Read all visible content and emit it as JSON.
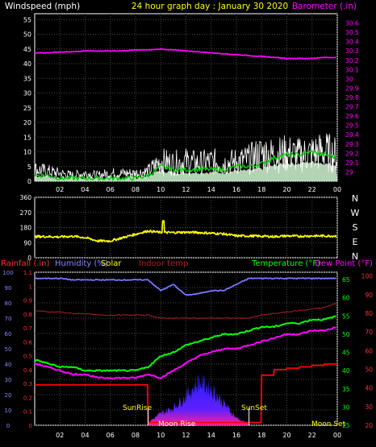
{
  "header": {
    "wind_label": "Windspeed (mph)",
    "title": "24 hour graph day : January 30 2020",
    "baro_label": "Barometer (.in)"
  },
  "bottom_header": {
    "rain_label": "Rainfall (.in)",
    "humidity_label": "Humidity (%)",
    "solar_label": "Solar",
    "indoor_label": "Indoor temp",
    "temp_label": "Temperature (°F)",
    "dew_label": "Dew Point (°F)"
  },
  "x_ticks": [
    "02",
    "04",
    "06",
    "08",
    "10",
    "12",
    "14",
    "16",
    "18",
    "20",
    "22",
    "00"
  ],
  "compass": [
    "N",
    "W",
    "S",
    "E",
    "N"
  ],
  "sun_moon": {
    "sunrise": "SunRise",
    "moonrise": "Moon Rise",
    "sunset": "SunSet",
    "moonset": "Moon Set"
  },
  "colors": {
    "wind_gust": "#ffffff",
    "wind_avg": "#00d000",
    "barometer": "#ff00ff",
    "direction": "#ffff00",
    "humidity": "#7777ff",
    "temperature": "#00ff00",
    "dew_point": "#ff00ff",
    "indoor": "#aa2222",
    "rain": "#ff0000",
    "solar": "#ffff00"
  },
  "chart_data": [
    {
      "type": "line",
      "title": "24 hour graph day : January 30 2020",
      "xlabel": "",
      "x_hours": [
        0,
        1,
        2,
        3,
        4,
        5,
        6,
        7,
        8,
        9,
        10,
        11,
        12,
        13,
        14,
        15,
        16,
        17,
        18,
        19,
        20,
        21,
        22,
        23,
        24
      ],
      "y_left_ticks": [
        0,
        5,
        10,
        15,
        20,
        25,
        30,
        35,
        40,
        45,
        50,
        55
      ],
      "y_right_ticks": [
        "29",
        "29.1",
        "29.2",
        "29.3",
        "29.4",
        "29.5",
        "29.6",
        "29.7",
        "29.8",
        "29.9",
        "30",
        "30.1",
        "30.2",
        "30.3",
        "30.4",
        "30.5",
        "30.6"
      ],
      "ylim_left": [
        0,
        57
      ],
      "ylim_right": [
        28.9,
        30.7
      ],
      "series": [
        {
          "name": "Windspeed (mph)",
          "axis": "left",
          "values": [
            6,
            5,
            4,
            3,
            4,
            3,
            4,
            4,
            4,
            5,
            10,
            9,
            10,
            9,
            10,
            9,
            10,
            11,
            14,
            13,
            14,
            13,
            14,
            15,
            13
          ]
        },
        {
          "name": "",
          "axis": "left",
          "values": [
            2,
            2,
            1,
            1,
            1,
            1,
            1,
            1,
            1,
            2,
            5,
            4,
            4,
            4,
            4,
            4,
            5,
            5,
            6,
            8,
            9,
            9,
            10,
            9,
            8
          ]
        },
        {
          "name": "Barometer (.in)",
          "axis": "right",
          "values": [
            30.28,
            30.28,
            30.29,
            30.29,
            30.3,
            30.3,
            30.3,
            30.3,
            30.31,
            30.31,
            30.32,
            30.31,
            30.3,
            30.29,
            30.28,
            30.27,
            30.26,
            30.25,
            30.24,
            30.23,
            30.22,
            30.22,
            30.22,
            30.23,
            30.23
          ]
        }
      ]
    },
    {
      "type": "line",
      "title": "",
      "ylabel": "",
      "x_hours": [
        0,
        1,
        2,
        3,
        4,
        5,
        6,
        7,
        8,
        9,
        10,
        11,
        12,
        13,
        14,
        15,
        16,
        17,
        18,
        19,
        20,
        21,
        22,
        23,
        24
      ],
      "y_ticks": [
        0,
        90,
        180,
        270,
        360
      ],
      "ylim": [
        0,
        360
      ],
      "series": [
        {
          "name": "",
          "values": [
            126,
            126,
            124,
            128,
            120,
            100,
            100,
            120,
            140,
            160,
            150,
            150,
            152,
            150,
            146,
            142,
            130,
            130,
            128,
            126,
            130,
            128,
            130,
            130,
            130
          ]
        }
      ]
    },
    {
      "type": "line",
      "title": "",
      "x_hours": [
        0,
        1,
        2,
        3,
        4,
        5,
        6,
        7,
        8,
        9,
        10,
        11,
        12,
        13,
        14,
        15,
        16,
        17,
        18,
        19,
        20,
        21,
        22,
        23,
        24
      ],
      "y_humidity_ticks": [
        0,
        10,
        20,
        30,
        40,
        50,
        60,
        70,
        80,
        90,
        100
      ],
      "y_rain_ticks": [
        "0",
        "0.1",
        "0.2",
        "0.3",
        "0.4",
        "0.5",
        "0.6",
        "0.7",
        "0.8",
        "0.9",
        "1",
        "1.1"
      ],
      "y_temp_ticks": [
        25,
        30,
        35,
        40,
        45,
        50,
        55,
        60,
        65
      ],
      "y_dew_ticks": [
        20,
        30,
        40,
        50,
        60,
        70,
        80,
        90,
        100
      ],
      "ylim_humidity": [
        0,
        100
      ],
      "ylim_temp": [
        25,
        67
      ],
      "series": [
        {
          "name": "Humidity (%)",
          "axis": "humidity",
          "values": [
            96,
            96,
            96,
            95,
            95,
            95,
            95,
            95,
            95,
            95,
            88,
            92,
            85,
            86,
            88,
            88,
            92,
            96,
            96,
            96,
            96,
            96,
            96,
            96,
            96
          ]
        },
        {
          "name": "Temperature (°F)",
          "axis": "temp",
          "values": [
            43,
            42,
            41,
            41,
            40,
            40,
            40,
            40,
            40,
            41,
            44,
            45,
            47,
            48,
            49,
            50,
            50,
            51,
            52,
            52,
            53,
            53,
            54,
            54,
            55
          ]
        },
        {
          "name": "Dew Point (°F)",
          "axis": "temp",
          "values": [
            42,
            41,
            40,
            39,
            39,
            38,
            38,
            38,
            38,
            39,
            38,
            40,
            42,
            44,
            45,
            46,
            46,
            47,
            48,
            49,
            50,
            50,
            51,
            51,
            52
          ]
        },
        {
          "name": "Indoor temp",
          "axis": "humidity",
          "values": [
            75,
            74,
            74,
            73,
            73,
            72,
            72,
            72,
            72,
            72,
            70,
            70,
            70,
            70,
            70,
            70,
            70,
            70,
            72,
            73,
            74,
            75,
            76,
            77,
            80
          ]
        },
        {
          "name": "Rainfall (.in)",
          "axis": "rain",
          "values": [
            0.29,
            0.29,
            0.29,
            0.29,
            0.29,
            0.29,
            0.29,
            0.29,
            0.29,
            0.02,
            0.02,
            0.02,
            0.02,
            0.02,
            0.02,
            0.02,
            0.02,
            0.02,
            0.36,
            0.4,
            0.41,
            0.42,
            0.43,
            0.44,
            0.44
          ]
        },
        {
          "name": "Solar",
          "axis": "humidity",
          "values": [
            0,
            0,
            0,
            0,
            0,
            0,
            0,
            0,
            0,
            2,
            8,
            12,
            20,
            30,
            25,
            15,
            5,
            1,
            0,
            0,
            0,
            0,
            0,
            0,
            0
          ]
        }
      ]
    }
  ]
}
